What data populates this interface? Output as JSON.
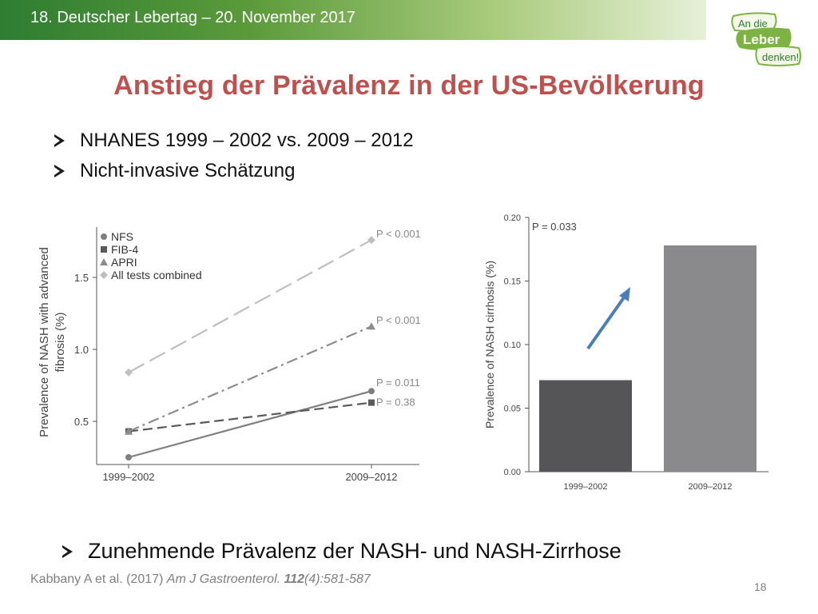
{
  "header": {
    "text": "18. Deutscher Lebertag – 20. November 2017"
  },
  "logo": {
    "line1": "An die",
    "line2": "Leber",
    "line3": "denken!"
  },
  "slide": {
    "title": "Anstieg der Prävalenz in der US-Bevölkerung",
    "bullets": [
      "NHANES  1999 – 2002 vs. 2009 – 2012",
      "Nicht-invasive Schätzung"
    ],
    "conclusion": "Zunehmende Prävalenz der NASH- und NASH-Zirrhose",
    "citation": {
      "authors": "Kabbany A et al. (2017) ",
      "journal": "Am J Gastroenterol.",
      "volume": "112",
      "issue": "(4):581-587"
    },
    "page_number": "18"
  },
  "colors": {
    "title": "#c0504d",
    "header_green": "#2e7d32",
    "arrow": "#4a7ebb"
  },
  "chart_data": [
    {
      "type": "line",
      "xlabel": "",
      "ylabel": "Prevalence of NASH with advanced fibrosis (%)",
      "categories": [
        "1999–2002",
        "2009–2012"
      ],
      "yticks": [
        0.5,
        1.0,
        1.5
      ],
      "ytick_labels": [
        "0.5",
        "1.0",
        "1.5"
      ],
      "ylim": [
        0.2,
        1.85
      ],
      "legend_position": "top-left",
      "series": [
        {
          "name": "NFS",
          "values": [
            0.25,
            0.71
          ],
          "marker": "circle",
          "dash": "solid",
          "color": "#7f7f7f",
          "pvalue": "P = 0.011"
        },
        {
          "name": "FIB-4",
          "values": [
            0.43,
            0.63
          ],
          "marker": "square",
          "dash": "dashed",
          "color": "#5a5a5a",
          "pvalue": "P = 0.38"
        },
        {
          "name": "APRI",
          "values": [
            0.43,
            1.16
          ],
          "marker": "triangle",
          "dash": "dashdot",
          "color": "#8c8c8c",
          "pvalue": "P < 0.001"
        },
        {
          "name": "All tests combined",
          "values": [
            0.84,
            1.76
          ],
          "marker": "diamond",
          "dash": "longdash",
          "color": "#bfbfbf",
          "pvalue": "P < 0.001"
        }
      ]
    },
    {
      "type": "bar",
      "xlabel": "",
      "ylabel": "Prevalence of NASH cirrhosis (%)",
      "categories": [
        "1999–2002",
        "2009–2012"
      ],
      "values": [
        0.072,
        0.178
      ],
      "colors": [
        "#555557",
        "#8a8a8c"
      ],
      "yticks": [
        0.0,
        0.05,
        0.1,
        0.15,
        0.2
      ],
      "ytick_labels": [
        "0.00",
        "0.05",
        "0.10",
        "0.15",
        "0.20"
      ],
      "ylim": [
        0,
        0.2
      ],
      "annotation": "P = 0.033"
    }
  ]
}
